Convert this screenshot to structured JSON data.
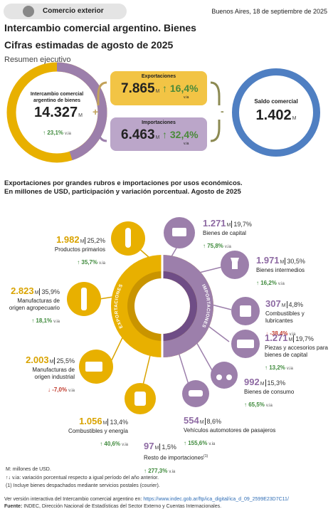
{
  "header": {
    "badge": "Comercio exterior",
    "date": "Buenos Aires, 18 de septiembre de 2025",
    "title": "Intercambio comercial argentino. Bienes",
    "subtitle": "Cifras estimadas de agosto de 2025",
    "section": "Resumen ejecutivo"
  },
  "units": {
    "M": "M",
    "via": "v.ia"
  },
  "summary": {
    "intercambio": {
      "label": "Intercambio comercial argentino de bienes",
      "value": "14.327",
      "change": "↑ 23,1%"
    },
    "exportaciones": {
      "label": "Exportaciones",
      "value": "7.865",
      "change": "↑ 16,4%"
    },
    "importaciones": {
      "label": "Importaciones",
      "value": "6.463",
      "change": "↑ 32,4%"
    },
    "saldo": {
      "label": "Saldo comercial",
      "value": "1.402"
    },
    "plus": "+",
    "minus": "-"
  },
  "breakdown": {
    "heading": [
      "Exportaciones por grandes rubros e importaciones por usos económicos.",
      "En millones de USD, participación y variación porcentual. Agosto de 2025"
    ],
    "ring_labels": {
      "exports": "EXPORTACIONES",
      "imports": "IMPORTACIONES"
    },
    "exports": [
      {
        "value": "1.982",
        "share": "25,2%",
        "name": "Productos primarios",
        "change": "↑ 35,7%"
      },
      {
        "value": "2.823",
        "share": "35,9%",
        "name": "Manufacturas de origen agropecuario",
        "change": "↑ 18,1%"
      },
      {
        "value": "2.003",
        "share": "25,5%",
        "name": "Manufacturas de origen industrial",
        "change": "↓ -7,0%"
      },
      {
        "value": "1.056",
        "share": "13,4%",
        "name": "Combustibles y energía",
        "change": "↑ 40,6%"
      }
    ],
    "imports": [
      {
        "value": "1.271",
        "share": "19,7%",
        "name": "Bienes de capital",
        "change": "↑ 75,8%"
      },
      {
        "value": "1.971",
        "share": "30,5%",
        "name": "Bienes intermedios",
        "change": "↑ 16,2%"
      },
      {
        "value": "307",
        "share": "4,8%",
        "name": "Combustibles y lubricantes",
        "change": "↓ -38,4%"
      },
      {
        "value": "1.271",
        "share": "19,7%",
        "name": "Piezas y accesorios para bienes de capital",
        "change": "↑ 13,2%"
      },
      {
        "value": "992",
        "share": "15,3%",
        "name": "Bienes de consumo",
        "change": "↑ 65,5%"
      },
      {
        "value": "554",
        "share": "8,6%",
        "name": "Vehículos automotores de pasajeros",
        "change": "↑ 155,6%"
      },
      {
        "value": "97",
        "share": "1,5%",
        "name": "Resto de importaciones",
        "note": "(1)",
        "change": "↑ 277,3%"
      }
    ]
  },
  "footer": {
    "units_note": "M: millones de USD.",
    "via_note": "↑↓ v.ia: variación porcentual respecto a igual período del año anterior.",
    "note1": "(1) Incluye bienes despachados mediante servicios postales (courier).",
    "link_text": "Ver versión interactiva del Intercambio comercial argentino en:",
    "link_url": "https://www.indec.gob.ar/ftp/ica_digital/ica_d_09_2599E23D7C11/",
    "source_label": "Fuente:",
    "source": "INDEC, Dirección Nacional de Estadísticas del Sector Externo y Cuentas Internacionales."
  }
}
